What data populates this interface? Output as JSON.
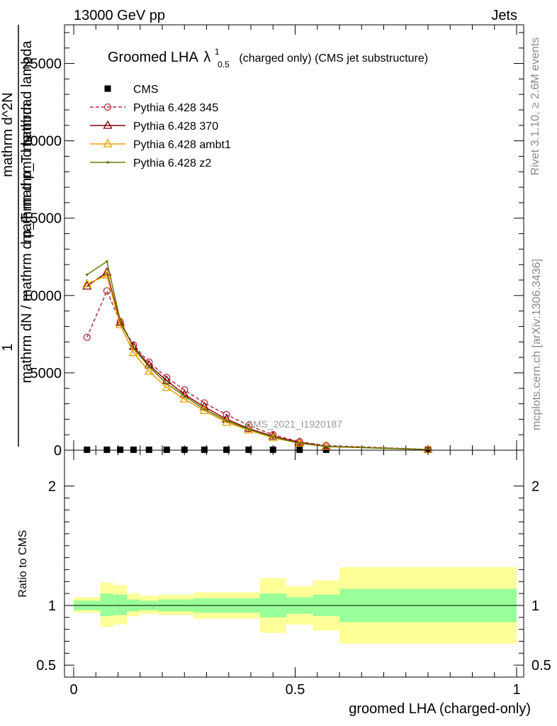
{
  "header": {
    "energy": "13000 GeV pp",
    "process": "Jets",
    "rivet_version": "Rivet 3.1.10, ≥ 2.6M events",
    "site": "mcplots.cern.ch [arXiv:1306.3436]",
    "analysis": "CMS_2021_I1920187"
  },
  "chart_data": {
    "type": "line",
    "title_main": "Groomed LHA",
    "title_lambda": "λ",
    "title_sup": "1",
    "title_sub": "0.5",
    "title_rest": "(charged only) (CMS jet substructure)",
    "ylabel_lines": [
      "1",
      "mathrm dN / mathrm d p_T mathrm d lambda",
      "mathrm d^2N",
      "mathrm d p_T mathrm d lambda"
    ],
    "xlabel": "groomed LHA (charged-only)",
    "xlim": [
      0,
      1
    ],
    "ylim": [
      0,
      27500
    ],
    "x_ticks": [
      {
        "v": 0,
        "label": "0"
      },
      {
        "v": 0.5,
        "label": "0.5"
      },
      {
        "v": 1,
        "label": "1"
      }
    ],
    "y_ticks": [
      {
        "v": 0,
        "label": "0"
      },
      {
        "v": 5000,
        "label": "5000"
      },
      {
        "v": 10000,
        "label": "10000"
      },
      {
        "v": 15000,
        "label": "15000"
      },
      {
        "v": 20000,
        "label": "20000"
      },
      {
        "v": 25000,
        "label": "25000"
      }
    ],
    "x": [
      0.03,
      0.075,
      0.105,
      0.135,
      0.17,
      0.21,
      0.25,
      0.295,
      0.345,
      0.395,
      0.45,
      0.51,
      0.57,
      0.8
    ],
    "series": [
      {
        "name": "CMS",
        "color": "#000000",
        "marker": "square",
        "values": [
          30,
          30,
          30,
          30,
          30,
          30,
          30,
          30,
          30,
          30,
          30,
          30,
          30,
          30
        ]
      },
      {
        "name": "Pythia 6.428 345",
        "color": "#b03040",
        "marker": "circle",
        "dashed": true,
        "values": [
          7300,
          10300,
          8300,
          6800,
          5700,
          4700,
          3900,
          3050,
          2300,
          1600,
          1000,
          550,
          300,
          50
        ]
      },
      {
        "name": "Pythia 6.428 370",
        "color": "#800000",
        "marker": "triangle",
        "values": [
          10600,
          11500,
          8250,
          6700,
          5500,
          4500,
          3600,
          2800,
          2000,
          1400,
          900,
          500,
          250,
          40
        ]
      },
      {
        "name": "Pythia 6.428 ambt1",
        "color": "#e8a000",
        "marker": "triangle",
        "values": [
          10750,
          11300,
          8100,
          6300,
          5100,
          4050,
          3300,
          2550,
          1800,
          1300,
          800,
          450,
          230,
          40
        ]
      },
      {
        "name": "Pythia 6.428 z2",
        "color": "#6b7a00",
        "marker": "dot",
        "values": [
          11350,
          12200,
          8400,
          6600,
          5400,
          4300,
          3500,
          2650,
          1900,
          1350,
          850,
          450,
          240,
          40
        ]
      }
    ],
    "ratio": {
      "ylabel": "Ratio to CMS",
      "ylim": [
        0.4,
        2.3
      ],
      "y_ticks": [
        {
          "v": 0.5,
          "label": "0.5"
        },
        {
          "v": 1,
          "label": "1"
        },
        {
          "v": 2,
          "label": "2"
        }
      ],
      "bins": [
        {
          "x0": 0.0,
          "x1": 0.06,
          "stat": [
            0.96,
            1.04
          ],
          "tot": [
            0.94,
            1.07
          ]
        },
        {
          "x0": 0.06,
          "x1": 0.09,
          "stat": [
            0.91,
            1.1
          ],
          "tot": [
            0.82,
            1.19
          ]
        },
        {
          "x0": 0.09,
          "x1": 0.12,
          "stat": [
            0.92,
            1.09
          ],
          "tot": [
            0.84,
            1.17
          ]
        },
        {
          "x0": 0.12,
          "x1": 0.15,
          "stat": [
            0.95,
            1.05
          ],
          "tot": [
            0.91,
            1.1
          ]
        },
        {
          "x0": 0.15,
          "x1": 0.19,
          "stat": [
            0.96,
            1.04
          ],
          "tot": [
            0.93,
            1.08
          ]
        },
        {
          "x0": 0.19,
          "x1": 0.27,
          "stat": [
            0.95,
            1.05
          ],
          "tot": [
            0.92,
            1.09
          ]
        },
        {
          "x0": 0.27,
          "x1": 0.42,
          "stat": [
            0.94,
            1.06
          ],
          "tot": [
            0.89,
            1.11
          ]
        },
        {
          "x0": 0.42,
          "x1": 0.48,
          "stat": [
            0.9,
            1.1
          ],
          "tot": [
            0.77,
            1.23
          ]
        },
        {
          "x0": 0.48,
          "x1": 0.54,
          "stat": [
            0.93,
            1.07
          ],
          "tot": [
            0.84,
            1.16
          ]
        },
        {
          "x0": 0.54,
          "x1": 0.6,
          "stat": [
            0.91,
            1.09
          ],
          "tot": [
            0.79,
            1.21
          ]
        },
        {
          "x0": 0.6,
          "x1": 1.0,
          "stat": [
            0.86,
            1.14
          ],
          "tot": [
            0.68,
            1.32
          ]
        }
      ],
      "stat_color": "#99ff99",
      "tot_color": "#ffff99"
    }
  }
}
